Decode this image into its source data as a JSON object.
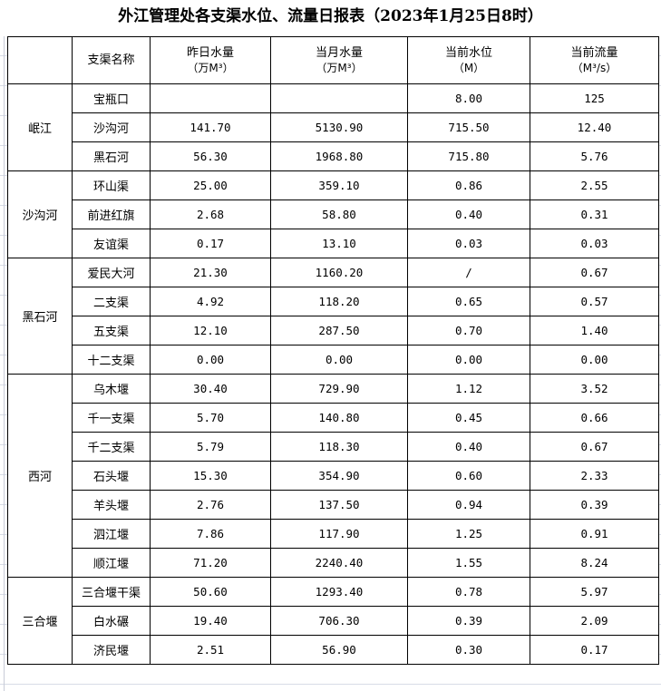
{
  "title": "外江管理处各支渠水位、流量日报表（2023年1月25日8时）",
  "headers": {
    "name": "支渠名称",
    "yesterday": "昨日水量",
    "yesterday_unit": "（万M³）",
    "month": "当月水量",
    "month_unit": "（万M³）",
    "level": "当前水位",
    "level_unit": "（M）",
    "flow": "当前流量",
    "flow_unit": "（M³/s）"
  },
  "groups": [
    {
      "name": "岷江",
      "rows": [
        [
          "宝瓶口",
          "",
          "",
          "8.00",
          "125"
        ],
        [
          "沙沟河",
          "141.70",
          "5130.90",
          "715.50",
          "12.40"
        ],
        [
          "黑石河",
          "56.30",
          "1968.80",
          "715.80",
          "5.76"
        ]
      ]
    },
    {
      "name": "沙沟河",
      "rows": [
        [
          "环山渠",
          "25.00",
          "359.10",
          "0.86",
          "2.55"
        ],
        [
          "前进红旗",
          "2.68",
          "58.80",
          "0.40",
          "0.31"
        ],
        [
          "友谊渠",
          "0.17",
          "13.10",
          "0.03",
          "0.03"
        ]
      ]
    },
    {
      "name": "黑石河",
      "rows": [
        [
          "爱民大河",
          "21.30",
          "1160.20",
          "/",
          "0.67"
        ],
        [
          "二支渠",
          "4.92",
          "118.20",
          "0.65",
          "0.57"
        ],
        [
          "五支渠",
          "12.10",
          "287.50",
          "0.70",
          "1.40"
        ],
        [
          "十二支渠",
          "0.00",
          "0.00",
          "0.00",
          "0.00"
        ]
      ]
    },
    {
      "name": "西河",
      "rows": [
        [
          "乌木堰",
          "30.40",
          "729.90",
          "1.12",
          "3.52"
        ],
        [
          "千一支渠",
          "5.70",
          "140.80",
          "0.45",
          "0.66"
        ],
        [
          "千二支渠",
          "5.79",
          "118.30",
          "0.40",
          "0.67"
        ],
        [
          "石头堰",
          "15.30",
          "354.90",
          "0.60",
          "2.33"
        ],
        [
          "羊头堰",
          "2.76",
          "137.50",
          "0.94",
          "0.39"
        ],
        [
          "泗江堰",
          "7.86",
          "117.90",
          "1.25",
          "0.91"
        ],
        [
          "顺江堰",
          "71.20",
          "2240.40",
          "1.55",
          "8.24"
        ]
      ]
    },
    {
      "name": "三合堰",
      "rows": [
        [
          "三合堰干渠",
          "50.60",
          "1293.40",
          "0.78",
          "5.97"
        ],
        [
          "白水碾",
          "19.40",
          "706.30",
          "0.39",
          "2.09"
        ],
        [
          "济民堰",
          "2.51",
          "56.90",
          "0.30",
          "0.17"
        ]
      ]
    }
  ]
}
